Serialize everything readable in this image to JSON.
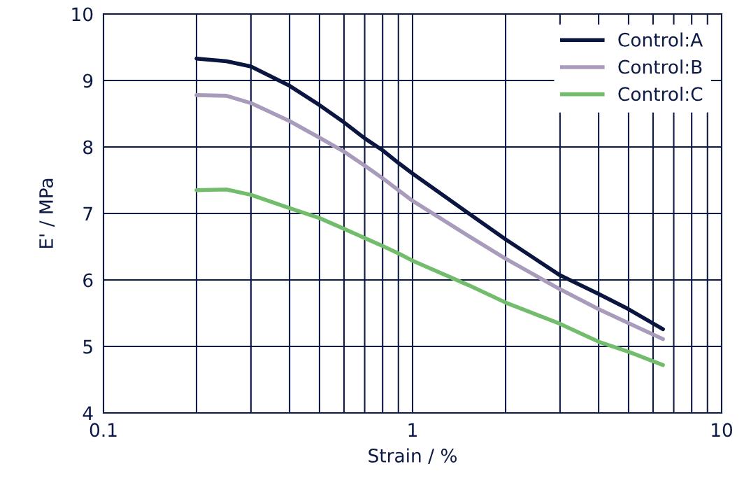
{
  "chart_data": {
    "type": "line",
    "xlabel": "Strain / %",
    "ylabel": "E' / MPa",
    "log": "x",
    "grid": true,
    "legend": "top right",
    "xlim": [
      0.1,
      10
    ],
    "ylim": [
      4,
      10
    ],
    "xticks": [
      {
        "value": 0.1,
        "label": "0.1"
      },
      {
        "value": 0.2,
        "label": null
      },
      {
        "value": 0.3,
        "label": null
      },
      {
        "value": 0.4,
        "label": null
      },
      {
        "value": 0.5,
        "label": null
      },
      {
        "value": 0.6,
        "label": null
      },
      {
        "value": 0.7,
        "label": null
      },
      {
        "value": 0.8,
        "label": null
      },
      {
        "value": 0.9,
        "label": null
      },
      {
        "value": 1,
        "label": "1"
      },
      {
        "value": 2,
        "label": null
      },
      {
        "value": 3,
        "label": null
      },
      {
        "value": 4,
        "label": null
      },
      {
        "value": 5,
        "label": null
      },
      {
        "value": 6,
        "label": null
      },
      {
        "value": 7,
        "label": null
      },
      {
        "value": 8,
        "label": null
      },
      {
        "value": 9,
        "label": null
      },
      {
        "value": 10,
        "label": "10"
      }
    ],
    "yticks": [
      4,
      5,
      6,
      7,
      8,
      9,
      10
    ],
    "x": [
      0.2,
      0.25,
      0.3,
      0.4,
      0.5,
      0.6,
      0.7,
      0.8,
      0.9,
      1,
      1.52,
      2,
      3,
      4,
      5,
      6.46
    ],
    "series": [
      {
        "name": "Control:A",
        "color": "#0a1640",
        "values": [
          9.33,
          9.29,
          9.21,
          8.92,
          8.63,
          8.37,
          8.13,
          7.95,
          7.76,
          7.6,
          7.0,
          6.61,
          6.07,
          5.79,
          5.56,
          5.26
        ]
      },
      {
        "name": "Control:B",
        "color": "#a89bbb",
        "values": [
          8.78,
          8.77,
          8.66,
          8.39,
          8.14,
          7.93,
          7.72,
          7.53,
          7.35,
          7.19,
          6.66,
          6.32,
          5.86,
          5.56,
          5.35,
          5.11
        ]
      },
      {
        "name": "Control:C",
        "color": "#72bd6c",
        "values": [
          7.35,
          7.36,
          7.28,
          7.08,
          6.93,
          6.77,
          6.63,
          6.51,
          6.4,
          6.29,
          5.92,
          5.66,
          5.34,
          5.07,
          4.92,
          4.72
        ]
      }
    ]
  }
}
